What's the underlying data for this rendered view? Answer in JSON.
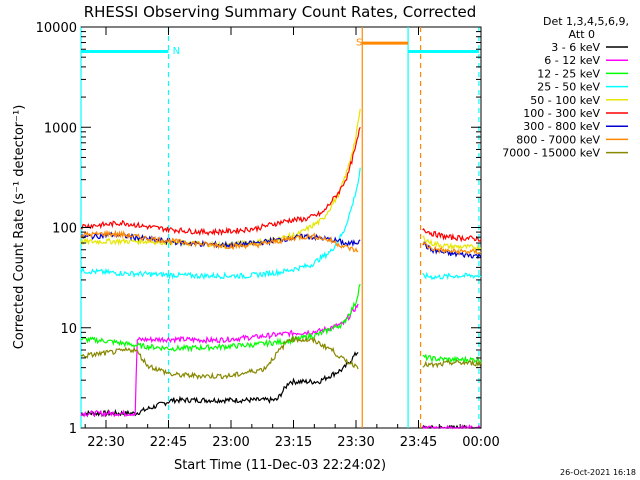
{
  "chart_data": {
    "type": "line",
    "title": "RHESSI Observing Summary Count Rates, Corrected",
    "xlabel": "Start Time (11-Dec-03 22:24:02)",
    "ylabel": "Corrected Count Rate (s⁻¹ detector⁻¹)",
    "yscale": "log",
    "ylim": [
      1,
      10000
    ],
    "xlim_minutes": [
      0,
      96
    ],
    "x_ticks": [
      {
        "label": "22:30",
        "m": 6
      },
      {
        "label": "22:45",
        "m": 21
      },
      {
        "label": "23:00",
        "m": 36
      },
      {
        "label": "23:15",
        "m": 51
      },
      {
        "label": "23:30",
        "m": 66
      },
      {
        "label": "23:45",
        "m": 81
      },
      {
        "label": "00:00",
        "m": 96
      }
    ],
    "y_ticks": [
      {
        "label": "1",
        "v": 1
      },
      {
        "label": "10",
        "v": 10
      },
      {
        "label": "100",
        "v": 100
      },
      {
        "label": "1000",
        "v": 1000
      },
      {
        "label": "10000",
        "v": 10000
      }
    ],
    "legend_header": [
      "Det 1,3,4,5,6,9,",
      "Att 0"
    ],
    "legend_position": "right",
    "series": [
      {
        "name": "3 - 6 keV",
        "color": "#000000",
        "x": [
          0,
          13,
          22,
          32,
          47,
          50,
          52,
          57,
          63,
          66.5
        ],
        "y": [
          1.4,
          1.4,
          1.9,
          1.9,
          1.9,
          2.9,
          2.9,
          2.9,
          3.9,
          5.8
        ],
        "x2": [
          82,
          96
        ],
        "y2": [
          1.0,
          1.0
        ]
      },
      {
        "name": "6 - 12 keV",
        "color": "#ff00ff",
        "x": [
          0,
          13,
          13.5,
          22,
          32,
          42,
          50,
          57,
          63,
          66.5
        ],
        "y": [
          1.4,
          1.4,
          7.6,
          7.7,
          7.5,
          8.1,
          8.8,
          9.2,
          11,
          17
        ],
        "x2": [
          82,
          96
        ],
        "y2": [
          1.0,
          1.0
        ]
      },
      {
        "name": "12 - 25 keV",
        "color": "#00ff00",
        "x": [
          0,
          6,
          14,
          22,
          32,
          42,
          50,
          57,
          63,
          66,
          67
        ],
        "y": [
          7.7,
          7.4,
          6.6,
          6.2,
          6.4,
          6.8,
          7.4,
          8.6,
          11,
          18,
          28
        ],
        "x2": [
          82,
          85,
          89,
          96
        ],
        "y2": [
          5.1,
          4.9,
          4.8,
          4.8
        ]
      },
      {
        "name": "25 - 50 keV",
        "color": "#00ffff",
        "x": [
          0,
          10,
          18,
          28,
          40,
          48,
          55,
          60,
          63,
          65,
          66.5,
          67
        ],
        "y": [
          37,
          35,
          34,
          33,
          33,
          36,
          42,
          58,
          90,
          160,
          280,
          380
        ],
        "x2": [
          82,
          85,
          90,
          96
        ],
        "y2": [
          33,
          32,
          33,
          33
        ]
      },
      {
        "name": "50 - 100 keV",
        "color": "#e6e600",
        "x": [
          0,
          8,
          15,
          25,
          35,
          45,
          52,
          58,
          62,
          64,
          66,
          67
        ],
        "y": [
          72,
          73,
          73,
          70,
          67,
          74,
          85,
          120,
          220,
          380,
          800,
          1500
        ],
        "x2": [
          82,
          84,
          88,
          96
        ],
        "y2": [
          80,
          70,
          65,
          63
        ]
      },
      {
        "name": "100 - 300 keV",
        "color": "#ff0000",
        "x": [
          0,
          6,
          10,
          15,
          20,
          25,
          30,
          36,
          42,
          46,
          50,
          54,
          58,
          62,
          64,
          66,
          67
        ],
        "y": [
          103,
          107,
          112,
          103,
          97,
          93,
          90,
          92,
          98,
          108,
          118,
          122,
          140,
          230,
          330,
          650,
          1000
        ],
        "x2": [
          82,
          84,
          88,
          96
        ],
        "y2": [
          98,
          88,
          80,
          77
        ]
      },
      {
        "name": "300 - 800 keV",
        "color": "#0000cc",
        "x": [
          0,
          8,
          15,
          22,
          30,
          36,
          42,
          48,
          54,
          58,
          62,
          64,
          66.5,
          67
        ],
        "y": [
          80,
          85,
          78,
          72,
          68,
          67,
          70,
          76,
          82,
          78,
          73,
          68,
          72,
          80
        ],
        "x2": [
          82,
          84,
          88,
          96
        ],
        "y2": [
          70,
          60,
          55,
          52
        ]
      },
      {
        "name": "800 - 7000 keV",
        "color": "#ff8800",
        "x": [
          0,
          6,
          10,
          16,
          22,
          30,
          36,
          42,
          48,
          52,
          56,
          60,
          63,
          66.5
        ],
        "y": [
          84,
          87,
          85,
          78,
          73,
          68,
          65,
          67,
          74,
          80,
          82,
          74,
          65,
          58
        ],
        "x2": [
          82,
          84,
          88,
          96
        ],
        "y2": [
          70,
          62,
          58,
          57
        ]
      },
      {
        "name": "7000 - 15000 keV",
        "color": "#888800",
        "x": [
          0,
          6,
          13,
          16,
          22,
          30,
          36,
          40,
          44,
          50,
          56,
          60,
          63,
          66.5
        ],
        "y": [
          5.2,
          5.6,
          6.1,
          4.2,
          3.4,
          3.3,
          3.3,
          3.6,
          3.9,
          7.8,
          7.4,
          6.1,
          4.8,
          4.1
        ],
        "x2": [
          82,
          85,
          89,
          96
        ],
        "y2": [
          4.3,
          4.2,
          4.5,
          4.4
        ]
      }
    ],
    "vertical_lines": [
      {
        "m": 0,
        "color": "#00ffff",
        "style": "solid"
      },
      {
        "m": 21,
        "color": "#00ffff",
        "style": "dashed"
      },
      {
        "m": 67.5,
        "color": "#ff8800",
        "style": "solid"
      },
      {
        "m": 78.5,
        "color": "#00ffff",
        "style": "solid"
      },
      {
        "m": 81.5,
        "color": "#ff8800",
        "style": "dashed"
      },
      {
        "m": 95.5,
        "color": "#00ffff",
        "style": "dashed"
      }
    ],
    "bars": [
      {
        "from": 0,
        "to": 21,
        "v": 5700,
        "color": "#00ffff",
        "label": ""
      },
      {
        "from": 78.5,
        "to": 95.5,
        "v": 5700,
        "color": "#00ffff",
        "label": ""
      },
      {
        "from": 67.5,
        "to": 78.5,
        "v": 6900,
        "color": "#ff8800",
        "label": ""
      }
    ],
    "markers": [
      {
        "text": "N",
        "m": 22,
        "v": 5900,
        "color": "#00ffff"
      },
      {
        "text": "S",
        "m": 66,
        "v": 7200,
        "color": "#ff8800"
      }
    ],
    "footer_timestamp": "26-Oct-2021 16:18",
    "grid": false
  }
}
